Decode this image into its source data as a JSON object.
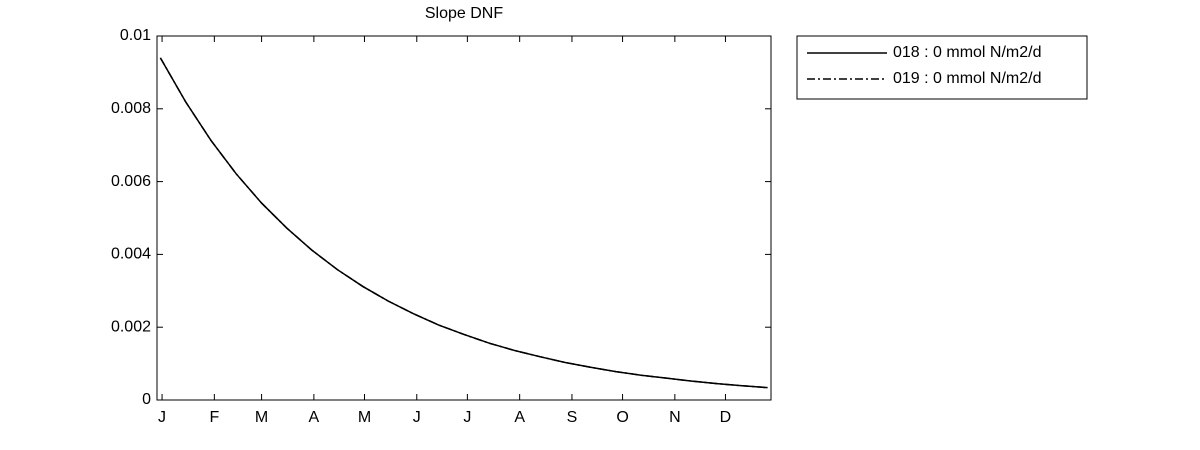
{
  "chart_data": {
    "type": "line",
    "title": "Slope DNF",
    "x": [
      0,
      15,
      30,
      45,
      60,
      75,
      90,
      105,
      120,
      135,
      150,
      165,
      180,
      195,
      210,
      225,
      240,
      255,
      270,
      285,
      300,
      315,
      330,
      345,
      360
    ],
    "series": [
      {
        "name": "018 : 0 mmol N/m2/d",
        "color": "#000000",
        "dash": "solid",
        "values": [
          0.0094,
          0.00819,
          0.00713,
          0.00621,
          0.00541,
          0.00472,
          0.00411,
          0.00358,
          0.00312,
          0.00272,
          0.00237,
          0.00206,
          0.0018,
          0.00156,
          0.00136,
          0.00119,
          0.00103,
          0.0009,
          0.00078,
          0.00068,
          0.0006,
          0.00052,
          0.00045,
          0.00039,
          0.00034
        ]
      },
      {
        "name": "019 : 0 mmol N/m2/d",
        "color": "#000000",
        "dash": "dashdot",
        "values": [
          0.0094,
          0.00819,
          0.00713,
          0.00621,
          0.00541,
          0.00472,
          0.00411,
          0.00358,
          0.00312,
          0.00272,
          0.00237,
          0.00206,
          0.0018,
          0.00156,
          0.00136,
          0.00119,
          0.00103,
          0.0009,
          0.00078,
          0.00068,
          0.0006,
          0.00052,
          0.00045,
          0.00039,
          0.00034
        ]
      }
    ],
    "xlim": [
      -2,
      362
    ],
    "xticks": [
      {
        "value": 1,
        "label": "J"
      },
      {
        "value": 32,
        "label": "F"
      },
      {
        "value": 60,
        "label": "M"
      },
      {
        "value": 91,
        "label": "A"
      },
      {
        "value": 121,
        "label": "M"
      },
      {
        "value": 152,
        "label": "J"
      },
      {
        "value": 182,
        "label": "J"
      },
      {
        "value": 213,
        "label": "A"
      },
      {
        "value": 244,
        "label": "S"
      },
      {
        "value": 274,
        "label": "O"
      },
      {
        "value": 305,
        "label": "N"
      },
      {
        "value": 335,
        "label": "D"
      }
    ],
    "ylim": [
      0,
      0.01
    ],
    "yticks": [
      0,
      0.002,
      0.004,
      0.006,
      0.008,
      0.01
    ],
    "grid": false,
    "legend": "outside-right"
  }
}
